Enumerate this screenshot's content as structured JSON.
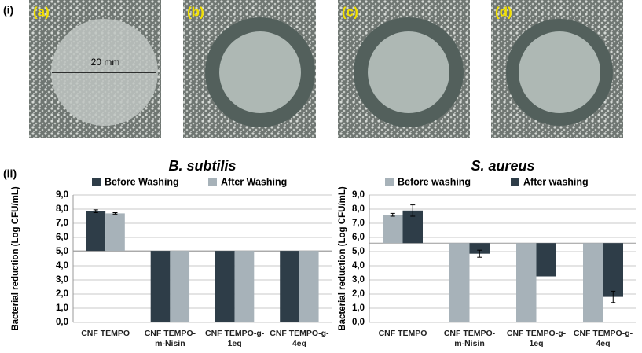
{
  "figure": {
    "section_labels": [
      "(i)",
      "(ii)"
    ],
    "panels": [
      "(a)",
      "(b)",
      "(c)",
      "(d)"
    ],
    "scale_label": "20 mm"
  },
  "chart_data": [
    {
      "type": "bar",
      "title": "B. subtilis",
      "y_label": "Bacterial reduction (Log CFU/mL)",
      "categories": [
        "CNF TEMPO",
        "CNF TEMPO-m-Nisin",
        "CNF TEMPO-g-1eq",
        "CNF TEMPO-g-4eq"
      ],
      "series": [
        {
          "name": "Before Washing",
          "color": "#2e3d48",
          "values": [
            7.85,
            0,
            0,
            0
          ],
          "errors": [
            0.1,
            null,
            null,
            null
          ]
        },
        {
          "name": "After Washing",
          "color": "#a7b2b9",
          "values": [
            7.7,
            0,
            0,
            0
          ],
          "errors": [
            0.05,
            null,
            null,
            null
          ]
        }
      ],
      "x_axis_crosses": 5.05,
      "ylim": [
        0,
        9
      ],
      "grid": true,
      "yticks": [
        {
          "value": 0,
          "label": "0,0"
        },
        {
          "value": 1,
          "label": "1,0"
        },
        {
          "value": 2,
          "label": "2,0"
        },
        {
          "value": 3,
          "label": "3,0"
        },
        {
          "value": 4,
          "label": "4,0"
        },
        {
          "value": 5,
          "label": "5,0"
        },
        {
          "value": 6,
          "label": "6,0"
        },
        {
          "value": 7,
          "label": "7,0"
        },
        {
          "value": 8,
          "label": "8,0"
        },
        {
          "value": 9,
          "label": "9,0"
        }
      ]
    },
    {
      "type": "bar",
      "title": "S. aureus",
      "y_label": "Bacterial reduction (Log CFU/mL)",
      "categories": [
        "CNF TEMPO",
        "CNF TEMPO-m-Nisin",
        "CNF TEMPO-g-1eq",
        "CNF TEMPO-g-4eq"
      ],
      "series": [
        {
          "name": "Before washing",
          "color": "#a7b2b9",
          "values": [
            7.6,
            0,
            0,
            0
          ],
          "errors": [
            0.1,
            null,
            null,
            null
          ]
        },
        {
          "name": "After washing",
          "color": "#2e3d48",
          "values": [
            7.9,
            4.85,
            3.25,
            1.8
          ],
          "errors": [
            0.4,
            0.25,
            null,
            0.4
          ]
        }
      ],
      "x_axis_crosses": 5.6,
      "ylim": [
        0,
        9
      ],
      "grid": true,
      "yticks": [
        {
          "value": 0,
          "label": "0,0"
        },
        {
          "value": 1,
          "label": "1,0"
        },
        {
          "value": 2,
          "label": "2,0"
        },
        {
          "value": 3,
          "label": "3,0"
        },
        {
          "value": 4,
          "label": "4,0"
        },
        {
          "value": 5,
          "label": "5,0"
        },
        {
          "value": 6,
          "label": "6,0"
        },
        {
          "value": 7,
          "label": "7,0"
        },
        {
          "value": 8,
          "label": "8,0"
        },
        {
          "value": 9,
          "label": "9,0"
        }
      ]
    }
  ]
}
